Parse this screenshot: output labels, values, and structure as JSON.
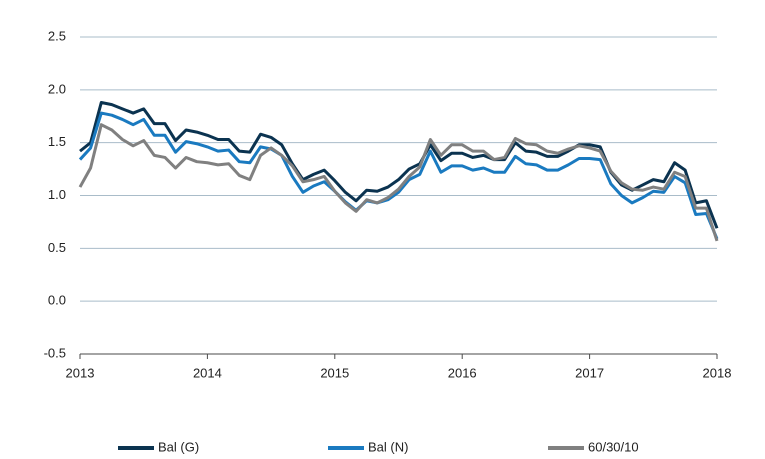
{
  "chart_data": {
    "type": "line",
    "x": [
      2013,
      2013.083,
      2013.167,
      2013.25,
      2013.333,
      2013.417,
      2013.5,
      2013.583,
      2013.667,
      2013.75,
      2013.833,
      2013.917,
      2014,
      2014.083,
      2014.167,
      2014.25,
      2014.333,
      2014.417,
      2014.5,
      2014.583,
      2014.667,
      2014.75,
      2014.833,
      2014.917,
      2015,
      2015.083,
      2015.167,
      2015.25,
      2015.333,
      2015.417,
      2015.5,
      2015.583,
      2015.667,
      2015.75,
      2015.833,
      2015.917,
      2016,
      2016.083,
      2016.167,
      2016.25,
      2016.333,
      2016.417,
      2016.5,
      2016.583,
      2016.667,
      2016.75,
      2016.833,
      2016.917,
      2017,
      2017.083,
      2017.167,
      2017.25,
      2017.333,
      2017.417,
      2017.5,
      2017.583,
      2017.667,
      2017.75,
      2017.833,
      2017.917,
      2018
    ],
    "series": [
      {
        "name": "Bal (G)",
        "color": "#0b3350",
        "values": [
          1.42,
          1.5,
          1.88,
          1.86,
          1.82,
          1.78,
          1.82,
          1.68,
          1.68,
          1.52,
          1.62,
          1.6,
          1.57,
          1.53,
          1.53,
          1.42,
          1.41,
          1.58,
          1.55,
          1.48,
          1.3,
          1.15,
          1.2,
          1.24,
          1.14,
          1.03,
          0.95,
          1.05,
          1.04,
          1.08,
          1.15,
          1.25,
          1.3,
          1.48,
          1.33,
          1.4,
          1.4,
          1.36,
          1.38,
          1.34,
          1.34,
          1.5,
          1.42,
          1.41,
          1.37,
          1.37,
          1.42,
          1.48,
          1.48,
          1.46,
          1.22,
          1.1,
          1.05,
          1.1,
          1.15,
          1.13,
          1.31,
          1.24,
          0.93,
          0.95,
          0.69
        ]
      },
      {
        "name": "Bal (N)",
        "color": "#1a7ac0",
        "values": [
          1.34,
          1.45,
          1.78,
          1.76,
          1.72,
          1.67,
          1.72,
          1.57,
          1.57,
          1.41,
          1.51,
          1.49,
          1.46,
          1.42,
          1.43,
          1.32,
          1.31,
          1.46,
          1.44,
          1.38,
          1.18,
          1.03,
          1.09,
          1.13,
          1.04,
          0.94,
          0.86,
          0.95,
          0.93,
          0.96,
          1.03,
          1.15,
          1.2,
          1.42,
          1.22,
          1.28,
          1.28,
          1.24,
          1.26,
          1.22,
          1.22,
          1.37,
          1.3,
          1.29,
          1.24,
          1.24,
          1.29,
          1.35,
          1.35,
          1.34,
          1.11,
          1.0,
          0.93,
          0.98,
          1.04,
          1.03,
          1.18,
          1.12,
          0.82,
          0.83,
          0.59
        ]
      },
      {
        "name": "60/30/10",
        "color": "#808080",
        "values": [
          1.08,
          1.26,
          1.67,
          1.62,
          1.53,
          1.47,
          1.52,
          1.38,
          1.36,
          1.26,
          1.36,
          1.32,
          1.31,
          1.29,
          1.3,
          1.19,
          1.15,
          1.38,
          1.45,
          1.38,
          1.28,
          1.13,
          1.15,
          1.18,
          1.04,
          0.93,
          0.85,
          0.96,
          0.93,
          0.98,
          1.06,
          1.18,
          1.27,
          1.53,
          1.38,
          1.48,
          1.48,
          1.42,
          1.42,
          1.34,
          1.36,
          1.54,
          1.49,
          1.48,
          1.42,
          1.4,
          1.44,
          1.47,
          1.45,
          1.42,
          1.23,
          1.12,
          1.06,
          1.05,
          1.08,
          1.06,
          1.22,
          1.18,
          0.88,
          0.88,
          0.57
        ]
      }
    ],
    "xlim": [
      2013,
      2018
    ],
    "xticks": [
      2013,
      2014,
      2015,
      2016,
      2017,
      2018
    ],
    "ylim": [
      -0.5,
      2.5
    ],
    "yticks": [
      -0.5,
      {
        "value": 0,
        "label": "0.0"
      },
      0.5,
      {
        "value": 1,
        "label": "1.0"
      },
      1.5,
      {
        "value": 2,
        "label": "2.0"
      },
      2.5
    ],
    "grid": true,
    "legend": "bottom"
  }
}
